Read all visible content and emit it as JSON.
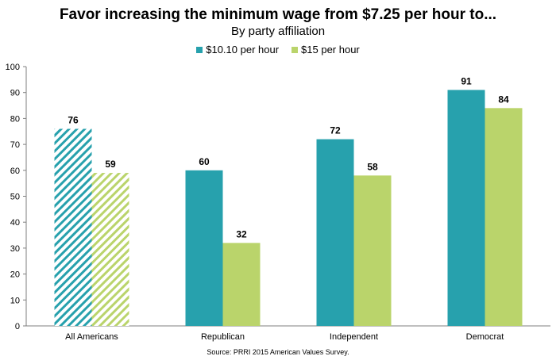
{
  "chart_data": {
    "type": "bar",
    "title": "Favor increasing the minimum wage from $7.25 per hour to...",
    "subtitle": "By party affiliation",
    "categories": [
      "All Americans",
      "Republican",
      "Independent",
      "Democrat"
    ],
    "series": [
      {
        "name": "$10.10 per hour",
        "color": "#27a1ad",
        "values": [
          76,
          60,
          72,
          91
        ]
      },
      {
        "name": "$15 per hour",
        "color": "#bad46b",
        "values": [
          59,
          32,
          58,
          84
        ]
      }
    ],
    "hatched_categories": [
      "All Americans"
    ],
    "ylim": [
      0,
      100
    ],
    "yticks": [
      0,
      10,
      20,
      30,
      40,
      50,
      60,
      70,
      80,
      90,
      100
    ],
    "xlabel": "",
    "ylabel": "",
    "grid": false,
    "legend_position": "top-center",
    "source": "Source: PRRI 2015 American Values Survey."
  }
}
